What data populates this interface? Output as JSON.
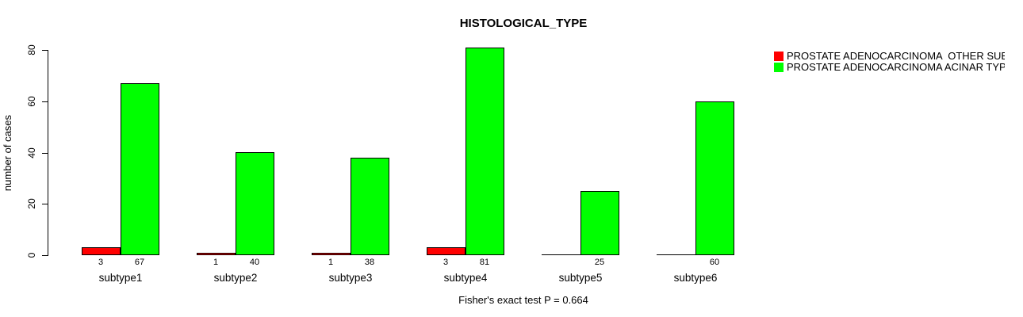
{
  "title": "HISTOLOGICAL_TYPE",
  "caption": "Fisher's exact test P = 0.664",
  "colors": {
    "background": "#ffffff",
    "axis": "#000000",
    "text": "#000000",
    "other_subtype": "#ff0000",
    "acinar_type": "#00ff00"
  },
  "chart_data": {
    "type": "bar",
    "title": "HISTOLOGICAL_TYPE",
    "xlabel": "",
    "ylabel": "number of cases",
    "ylim": [
      0,
      80
    ],
    "yticks": [
      0,
      20,
      40,
      60,
      80
    ],
    "grid": false,
    "legend_position": "top-right",
    "categories": [
      "subtype1",
      "subtype2",
      "subtype3",
      "subtype4",
      "subtype5",
      "subtype6"
    ],
    "series": [
      {
        "name": "PROSTATE ADENOCARCINOMA  OTHER SUBTYPE",
        "color": "#ff0000",
        "values": [
          3,
          1,
          1,
          3,
          0,
          0
        ]
      },
      {
        "name": "PROSTATE ADENOCARCINOMA ACINAR TYPE",
        "color": "#00ff00",
        "values": [
          67,
          40,
          38,
          81,
          25,
          60
        ]
      }
    ],
    "bar_value_labels_shown": true,
    "zero_value_labels_hidden": true,
    "annotation": "Fisher's exact test P = 0.664"
  }
}
